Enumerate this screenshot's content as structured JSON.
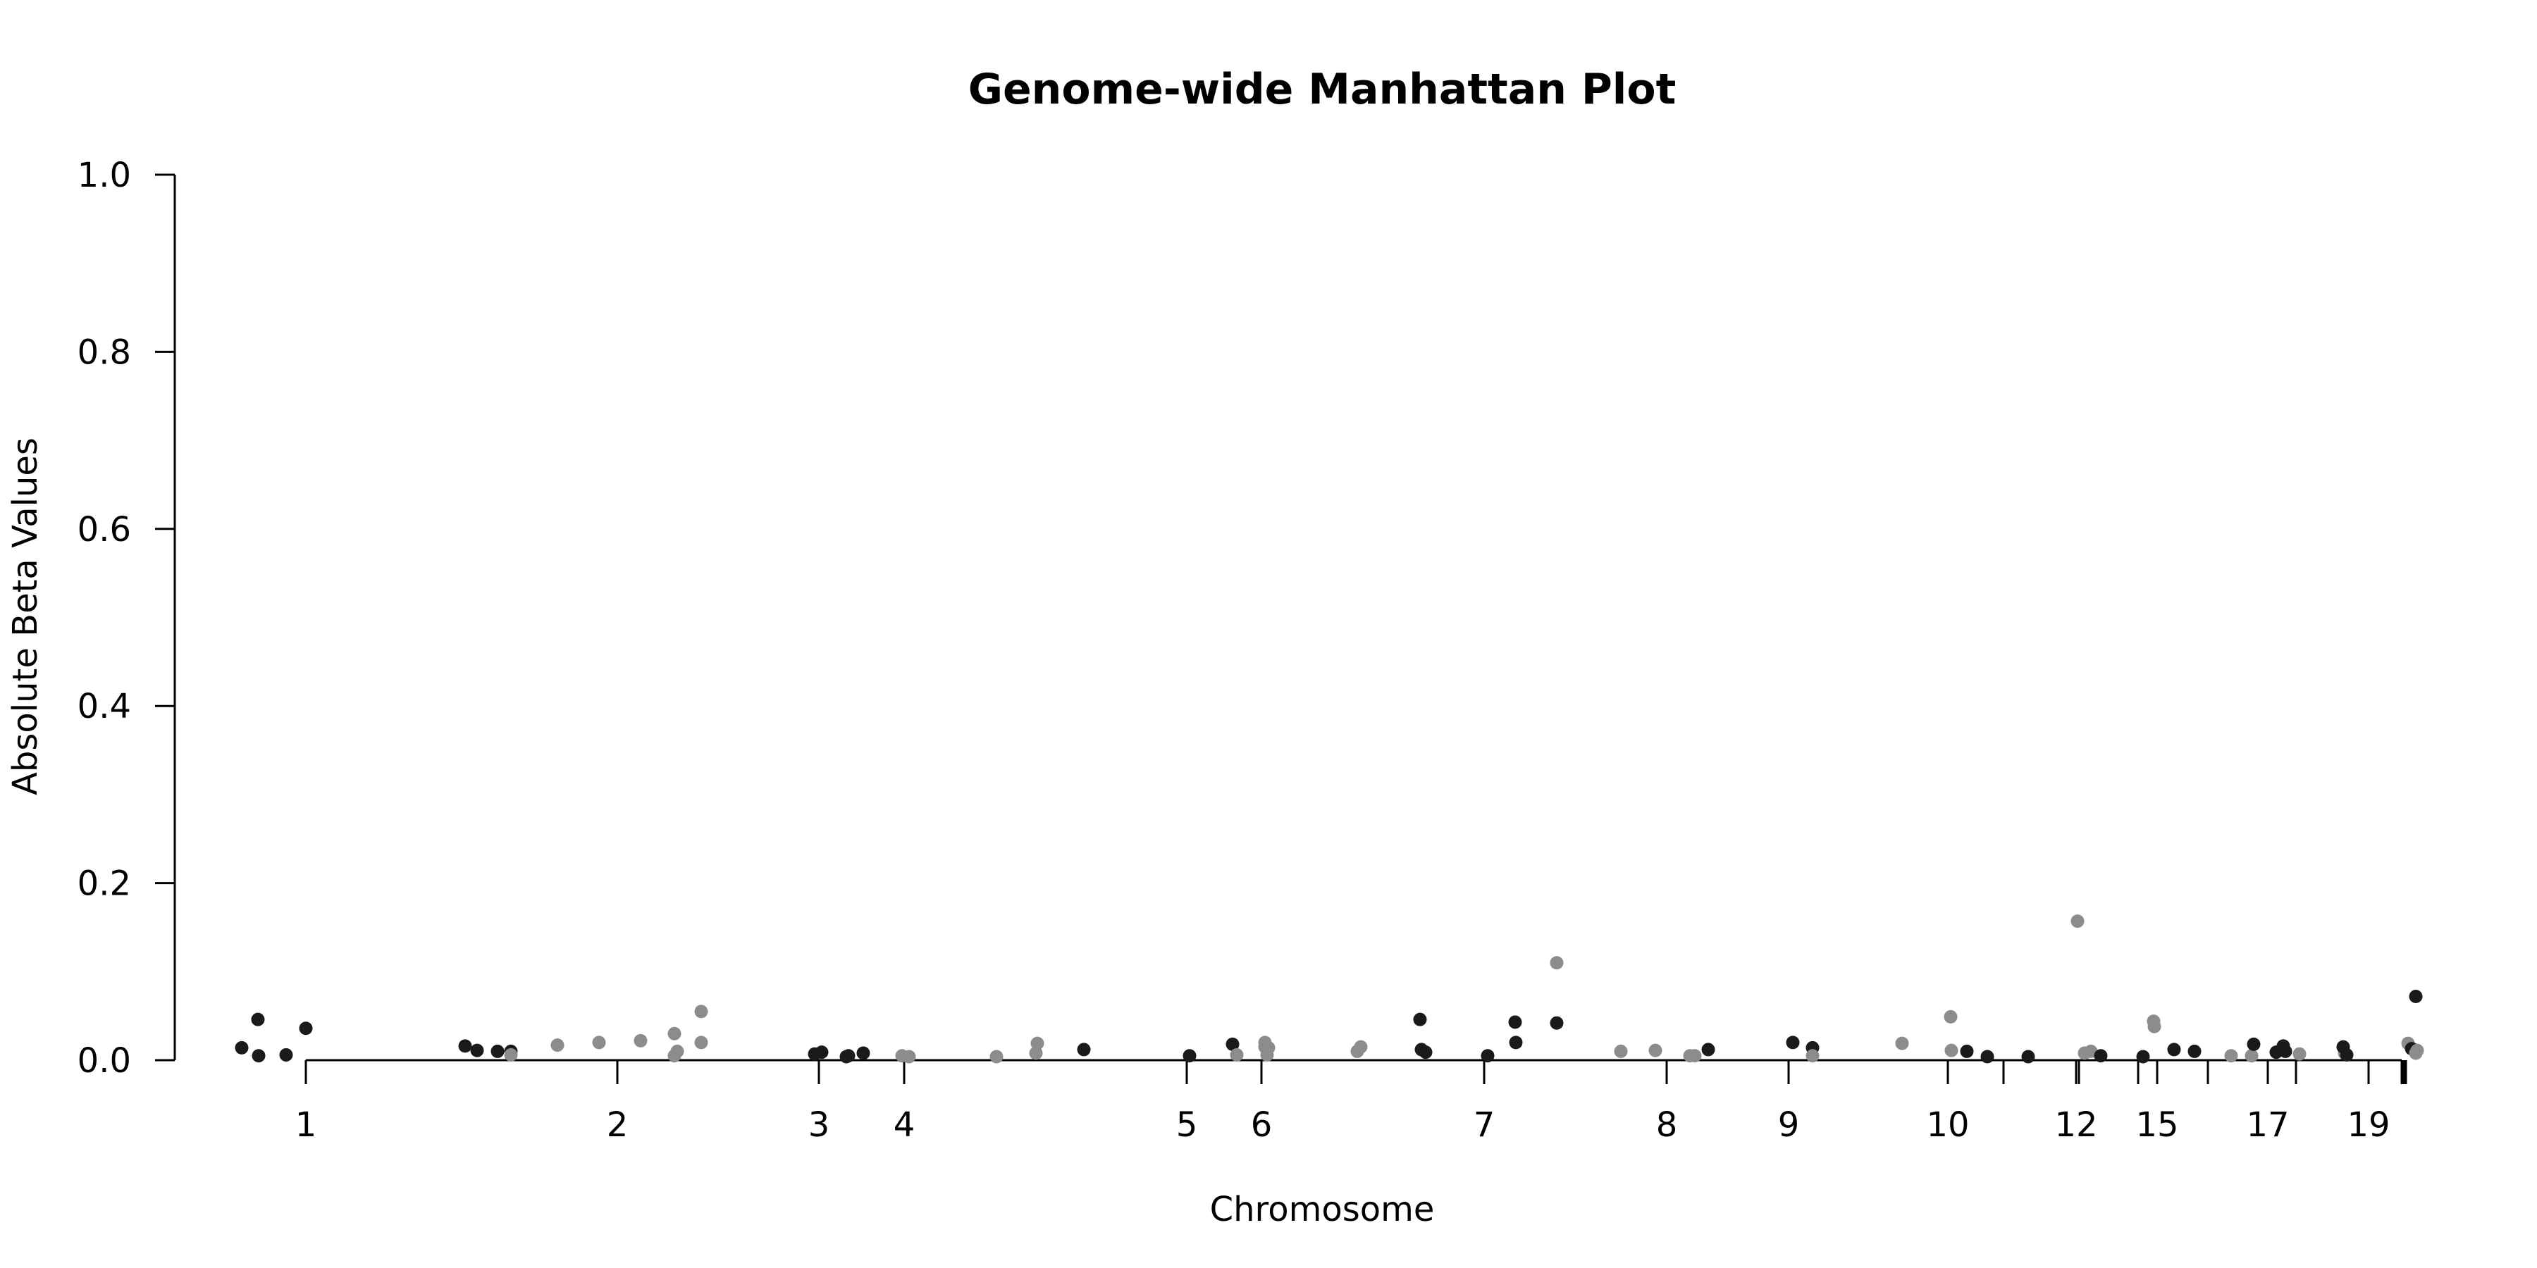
{
  "chart_data": {
    "type": "scatter",
    "title": "Genome-wide Manhattan Plot",
    "xlabel": "Chromosome",
    "ylabel": "Absolute Beta Values",
    "ylim": [
      0,
      1
    ],
    "y_ticks": [
      "0.0",
      "0.2",
      "0.4",
      "0.6",
      "0.8",
      "1.0"
    ],
    "x_tick_labels": [
      "1",
      "2",
      "3",
      "4",
      "5",
      "6",
      "7",
      "8",
      "9",
      "10",
      "12",
      "15",
      "17",
      "19"
    ],
    "grid": false,
    "legend": "none",
    "colors": {
      "odd_chromosome": "#1a1a1a",
      "even_chromosome": "#8c8c8c"
    },
    "points": [
      {
        "chr": "1",
        "y": 0.014
      },
      {
        "chr": "1",
        "y": 0.046
      },
      {
        "chr": "1",
        "y": 0.005
      },
      {
        "chr": "1",
        "y": 0.006
      },
      {
        "chr": "1",
        "y": 0.036
      },
      {
        "chr": "1",
        "y": 0.016
      },
      {
        "chr": "1",
        "y": 0.011
      },
      {
        "chr": "1",
        "y": 0.01
      },
      {
        "chr": "1",
        "y": 0.01
      },
      {
        "chr": "2",
        "y": 0.006
      },
      {
        "chr": "2",
        "y": 0.017
      },
      {
        "chr": "2",
        "y": 0.02
      },
      {
        "chr": "2",
        "y": 0.022
      },
      {
        "chr": "2",
        "y": 0.03
      },
      {
        "chr": "2",
        "y": 0.005
      },
      {
        "chr": "2",
        "y": 0.01
      },
      {
        "chr": "2",
        "y": 0.055
      },
      {
        "chr": "2",
        "y": 0.02
      },
      {
        "chr": "3",
        "y": 0.007
      },
      {
        "chr": "3",
        "y": 0.009
      },
      {
        "chr": "3",
        "y": 0.004
      },
      {
        "chr": "3",
        "y": 0.005
      },
      {
        "chr": "3",
        "y": 0.008
      },
      {
        "chr": "4",
        "y": 0.005
      },
      {
        "chr": "4",
        "y": 0.004
      },
      {
        "chr": "4",
        "y": 0.004
      },
      {
        "chr": "4",
        "y": 0.008
      },
      {
        "chr": "4",
        "y": 0.019
      },
      {
        "chr": "5",
        "y": 0.012
      },
      {
        "chr": "5",
        "y": 0.005
      },
      {
        "chr": "5",
        "y": 0.018
      },
      {
        "chr": "6",
        "y": 0.006
      },
      {
        "chr": "6",
        "y": 0.02
      },
      {
        "chr": "6",
        "y": 0.015
      },
      {
        "chr": "6",
        "y": 0.006
      },
      {
        "chr": "6",
        "y": 0.014
      },
      {
        "chr": "6",
        "y": 0.01
      },
      {
        "chr": "6",
        "y": 0.015
      },
      {
        "chr": "7",
        "y": 0.046
      },
      {
        "chr": "7",
        "y": 0.009
      },
      {
        "chr": "7",
        "y": 0.012
      },
      {
        "chr": "7",
        "y": 0.005
      },
      {
        "chr": "7",
        "y": 0.02
      },
      {
        "chr": "7",
        "y": 0.043
      },
      {
        "chr": "7",
        "y": 0.042
      },
      {
        "chr": "8",
        "y": 0.11
      },
      {
        "chr": "8",
        "y": 0.01
      },
      {
        "chr": "8",
        "y": 0.011
      },
      {
        "chr": "8",
        "y": 0.005
      },
      {
        "chr": "8",
        "y": 0.005
      },
      {
        "chr": "9",
        "y": 0.012
      },
      {
        "chr": "9",
        "y": 0.02
      },
      {
        "chr": "9",
        "y": 0.014
      },
      {
        "chr": "10",
        "y": 0.005
      },
      {
        "chr": "10",
        "y": 0.019
      },
      {
        "chr": "10",
        "y": 0.049
      },
      {
        "chr": "10",
        "y": 0.011
      },
      {
        "chr": "11",
        "y": 0.01
      },
      {
        "chr": "11",
        "y": 0.004
      },
      {
        "chr": "11",
        "y": 0.004
      },
      {
        "chr": "12",
        "y": 0.157
      },
      {
        "chr": "12",
        "y": 0.008
      },
      {
        "chr": "12",
        "y": 0.01
      },
      {
        "chr": "13",
        "y": 0.005
      },
      {
        "chr": "13",
        "y": 0.004
      },
      {
        "chr": "14",
        "y": 0.044
      },
      {
        "chr": "14",
        "y": 0.038
      },
      {
        "chr": "15",
        "y": 0.012
      },
      {
        "chr": "15",
        "y": 0.01
      },
      {
        "chr": "16",
        "y": 0.005
      },
      {
        "chr": "16",
        "y": 0.005
      },
      {
        "chr": "17",
        "y": 0.018
      },
      {
        "chr": "17",
        "y": 0.009
      },
      {
        "chr": "17",
        "y": 0.016
      },
      {
        "chr": "17",
        "y": 0.01
      },
      {
        "chr": "18",
        "y": 0.007
      },
      {
        "chr": "18",
        "y": 0.008
      },
      {
        "chr": "19",
        "y": 0.015
      },
      {
        "chr": "19",
        "y": 0.006
      },
      {
        "chr": "20",
        "y": 0.019
      },
      {
        "chr": "20",
        "y": 0.012
      },
      {
        "chr": "21",
        "y": 0.072
      },
      {
        "chr": "21",
        "y": 0.013
      },
      {
        "chr": "22",
        "y": 0.008
      },
      {
        "chr": "22",
        "y": 0.011
      }
    ]
  }
}
